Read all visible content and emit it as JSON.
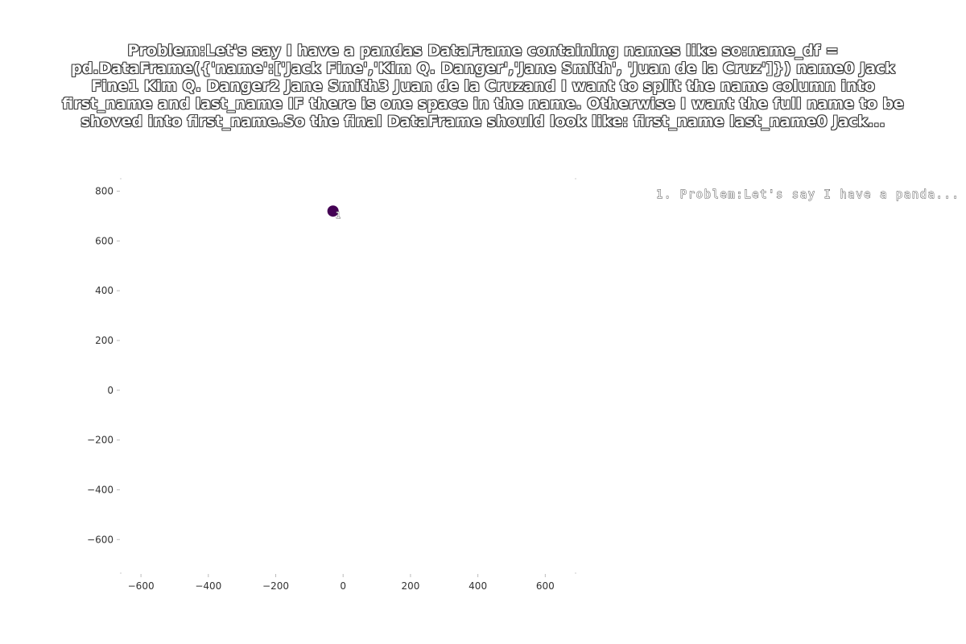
{
  "chart_data": {
    "type": "scatter",
    "title": "Problem:Let's say I have a pandas DataFrame containing names like so:name_df = pd.DataFrame({'name':['Jack Fine','Kim Q. Danger','Jane Smith', 'Juan de la Cruz']})    name0   Jack Fine1   Kim Q. Danger2   Jane Smith3   Juan de la Cruzand I want to split the name column into first_name and last_name IF there is one space in the name. Otherwise I want the full name to be shoved into first_name.So the final DataFrame should look like:  first_name     last_name0 Jack...",
    "xlim": [
      -660,
      690
    ],
    "ylim": [
      -735,
      850
    ],
    "x_ticks": [
      -600,
      -400,
      -200,
      0,
      200,
      400,
      600
    ],
    "y_ticks": [
      -600,
      -400,
      -200,
      0,
      200,
      400,
      600,
      800
    ],
    "x_tick_labels": [
      "−600",
      "−400",
      "−200",
      "0",
      "200",
      "400",
      "600"
    ],
    "y_tick_labels": [
      "−600",
      "−400",
      "−200",
      "0",
      "200",
      "400",
      "600",
      "800"
    ],
    "grid": false,
    "legend_placement": "top-right",
    "points": [
      {
        "x": -30,
        "y": 720,
        "label": "1",
        "color": "#440154"
      }
    ],
    "legend": [
      {
        "text": "1. Problem:Let's say I have a panda..."
      }
    ]
  }
}
